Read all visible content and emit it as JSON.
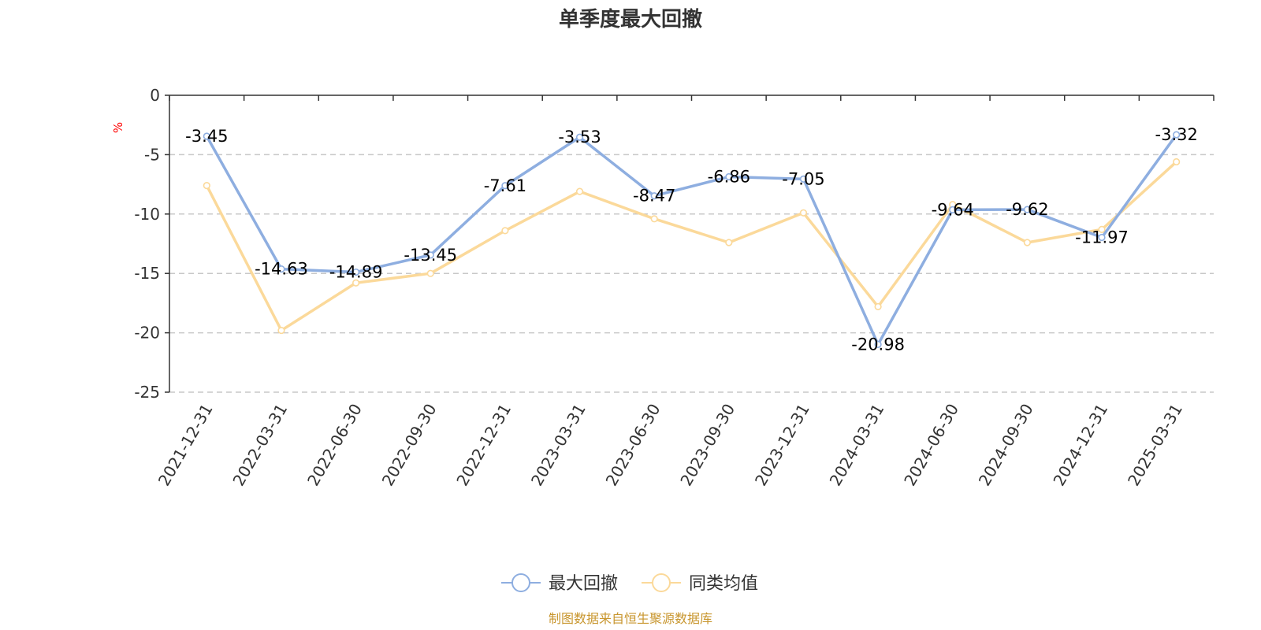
{
  "chart_data": {
    "type": "line",
    "title": "单季度最大回撤",
    "ylabel": "%",
    "ylim": [
      -25,
      0
    ],
    "yticks": [
      0,
      -5,
      -10,
      -15,
      -20,
      -25
    ],
    "grid": true,
    "legend_position": "bottom",
    "categories": [
      "2021-12-31",
      "2022-03-31",
      "2022-06-30",
      "2022-09-30",
      "2022-12-31",
      "2023-03-31",
      "2023-06-30",
      "2023-09-30",
      "2023-12-31",
      "2024-03-31",
      "2024-06-30",
      "2024-09-30",
      "2024-12-31",
      "2025-03-31"
    ],
    "series": [
      {
        "name": "最大回撤",
        "color": "#8eaee0",
        "show_labels": true,
        "values": [
          -3.45,
          -14.63,
          -14.89,
          -13.45,
          -7.61,
          -3.53,
          -8.47,
          -6.86,
          -7.05,
          -20.98,
          -9.64,
          -9.62,
          -11.97,
          -3.32
        ]
      },
      {
        "name": "同类均值",
        "color": "#fbd99a",
        "show_labels": false,
        "values": [
          -7.6,
          -19.8,
          -15.8,
          -15.0,
          -11.4,
          -8.1,
          -10.4,
          -12.4,
          -9.9,
          -17.8,
          -9.2,
          -12.4,
          -11.3,
          -5.6
        ]
      }
    ],
    "unit_color": "#ff0000",
    "source": "制图数据来自恒生聚源数据库",
    "source_color": "#c8962e"
  }
}
